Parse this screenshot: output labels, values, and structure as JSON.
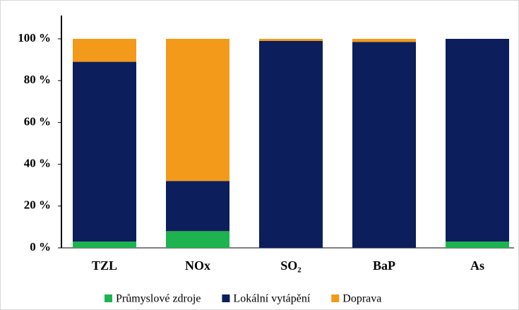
{
  "chart_data": {
    "type": "stacked_bar",
    "categories": [
      "TZL",
      "NOx",
      "SO₂",
      "BaP",
      "As"
    ],
    "series": [
      {
        "name": "Průmyslové zdroje",
        "color": "#1db34f",
        "values": [
          3,
          8,
          0,
          0,
          3
        ]
      },
      {
        "name": "Lokální vytápění",
        "color": "#0c1e5b",
        "values": [
          86,
          24,
          99,
          98.5,
          97
        ]
      },
      {
        "name": "Doprava",
        "color": "#f39a1b",
        "values": [
          11,
          68,
          1,
          1.5,
          0
        ]
      }
    ],
    "ylim": [
      0,
      100
    ],
    "yticks": [
      {
        "value": 0,
        "label": "0 %"
      },
      {
        "value": 20,
        "label": "20 %"
      },
      {
        "value": 40,
        "label": "40 %"
      },
      {
        "value": 60,
        "label": "60 %"
      },
      {
        "value": 80,
        "label": "80 %"
      },
      {
        "value": 100,
        "label": "100 %"
      }
    ],
    "legend": "bottom"
  }
}
